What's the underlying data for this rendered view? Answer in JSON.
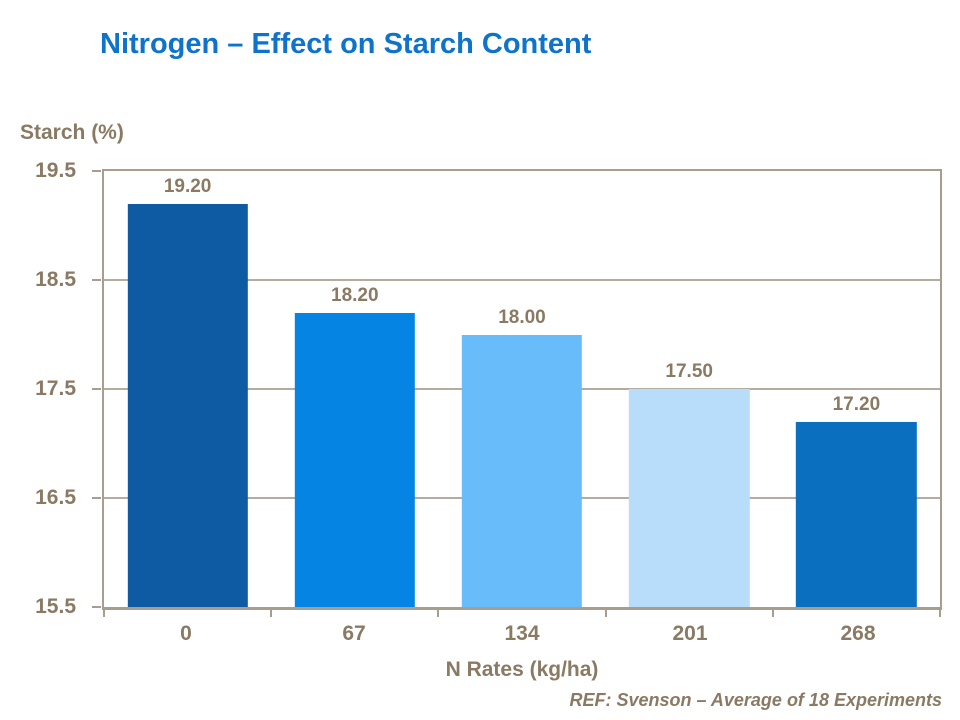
{
  "page": {
    "title": "Nitrogen – Effect on Starch Content",
    "footnote": "REF: Svenson – Average of 18 Experiments"
  },
  "colors": {
    "title": "#0d73cb",
    "text": "#8a7a64",
    "axis": "#a89e90",
    "gridline": "#b4aca1",
    "background": "#ffffff"
  },
  "chart_data": {
    "type": "bar",
    "title": "Nitrogen – Effect on Starch Content",
    "categories": [
      "0",
      "67",
      "134",
      "201",
      "268"
    ],
    "values": [
      19.2,
      18.2,
      18.0,
      17.5,
      17.2
    ],
    "value_labels": [
      "19.20",
      "18.20",
      "18.00",
      "17.50",
      "17.20"
    ],
    "bar_colors": [
      "#0e5ba4",
      "#0684e4",
      "#68bcf9",
      "#b7ddfb",
      "#0b6fc0"
    ],
    "xlabel": "N Rates (kg/ha)",
    "ylabel": "Starch (%)",
    "ylim": [
      15.5,
      19.5
    ],
    "yticks": [
      "19.5",
      "18.5",
      "17.5",
      "16.5",
      "15.5"
    ],
    "grid": "horizontal",
    "legend": "none"
  }
}
